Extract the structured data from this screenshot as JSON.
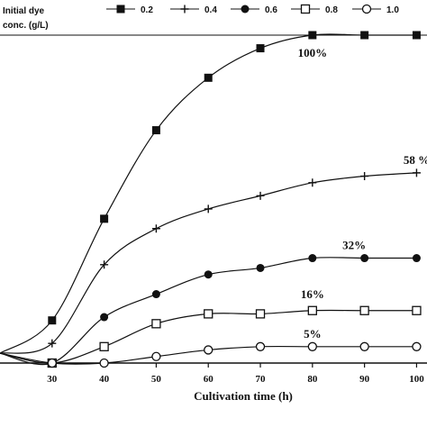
{
  "chart_data": {
    "type": "line",
    "title": "",
    "xlabel": "Cultivation time (h)",
    "ylabel": "",
    "xlim": [
      20,
      102
    ],
    "ylim": [
      0,
      100
    ],
    "x_ticks": [
      30,
      40,
      50,
      60,
      70,
      80,
      90,
      100
    ],
    "x_tick_labels": [
      "30",
      "40",
      "50",
      "60",
      "70",
      "80",
      "90",
      "100"
    ],
    "grid": false,
    "legend": {
      "title_line1": "Initial dye",
      "title_line2": "conc. (g/L)",
      "placement": "top"
    },
    "x": [
      20,
      30,
      40,
      50,
      60,
      70,
      80,
      90,
      100
    ],
    "series": [
      {
        "name": "0.2",
        "marker": "filled-square",
        "values": [
          3,
          13,
          44,
          71,
          87,
          96,
          100,
          100,
          100
        ]
      },
      {
        "name": "0.4",
        "marker": "plus",
        "values": [
          3,
          6,
          30,
          41,
          47,
          51,
          55,
          57,
          58
        ]
      },
      {
        "name": "0.6",
        "marker": "filled-circle",
        "values": [
          3,
          0,
          14,
          21,
          27,
          29,
          32,
          32,
          32
        ]
      },
      {
        "name": "0.8",
        "marker": "open-square",
        "values": [
          3,
          0,
          5,
          12,
          15,
          15,
          16,
          16,
          16
        ]
      },
      {
        "name": "1.0",
        "marker": "open-circle",
        "values": [
          3,
          0,
          0,
          2,
          4,
          5,
          5,
          5,
          5
        ]
      }
    ],
    "annotations": [
      {
        "text": "100%",
        "x": 80,
        "y": 100
      },
      {
        "text": "58 %",
        "x": 100,
        "y": 58
      },
      {
        "text": "32%",
        "x": 88,
        "y": 32
      },
      {
        "text": "16%",
        "x": 80,
        "y": 16
      },
      {
        "text": "5%",
        "x": 80,
        "y": 5
      }
    ]
  }
}
